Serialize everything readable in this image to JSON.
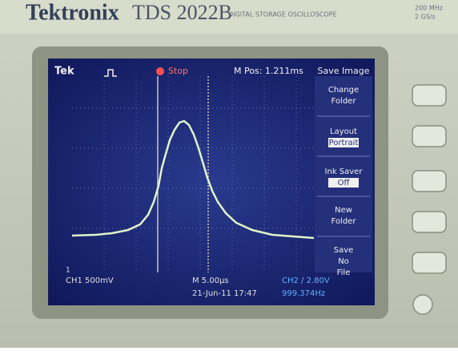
{
  "header": {
    "brand": "Tektronix",
    "model": "TDS 2022B",
    "subtitle": "DIGITAL STORAGE OSCILLOSCOPE",
    "specs": [
      "200 MHz",
      "2 GS/s"
    ]
  },
  "screen": {
    "status": {
      "logo": "Tek",
      "state": "Stop",
      "position": "M Pos: 1.211ms"
    },
    "menu": {
      "title": "Save Image",
      "items": [
        {
          "label": "Change Folder"
        },
        {
          "label": "Layout",
          "option": "Portrait"
        },
        {
          "label": "Ink Saver",
          "option": "Off"
        },
        {
          "label": "New Folder"
        },
        {
          "label": "Save No File"
        }
      ]
    },
    "footer": {
      "marker": "1",
      "channel1": "CH1 500mV",
      "timebase": "M 5.00µs",
      "trigger": "CH2 ∕ 2.80V",
      "date": "21-Jun-11 17:47",
      "frequency": "999.374Hz"
    }
  }
}
